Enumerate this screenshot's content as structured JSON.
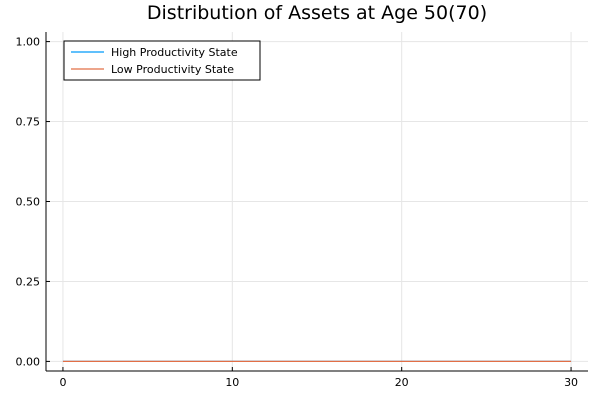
{
  "chart_data": {
    "type": "line",
    "title": "Distribution of Assets at Age 50(70)",
    "xlabel": "",
    "ylabel": "",
    "xlim": [
      -1,
      31
    ],
    "ylim": [
      -0.03,
      1.03
    ],
    "xticks": [
      0,
      10,
      20,
      30
    ],
    "xtick_labels": [
      "0",
      "10",
      "20",
      "30"
    ],
    "yticks": [
      0,
      0.25,
      0.5,
      0.75,
      1.0
    ],
    "ytick_labels": [
      "0.00",
      "0.25",
      "0.50",
      "0.75",
      "1.00"
    ],
    "grid": true,
    "legend_position": "top-left",
    "series": [
      {
        "name": "High Productivity State",
        "color": "#009af9",
        "x": [
          0,
          30
        ],
        "y": [
          0,
          0
        ]
      },
      {
        "name": "Low Productivity State",
        "color": "#e26f46",
        "x": [
          0,
          30
        ],
        "y": [
          0,
          0
        ]
      }
    ]
  }
}
